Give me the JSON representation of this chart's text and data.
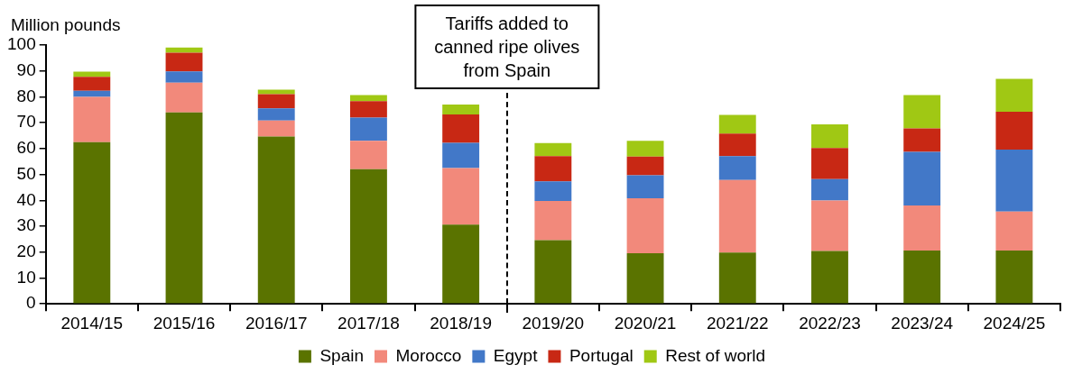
{
  "chart_data": {
    "type": "bar",
    "stacked": true,
    "ylabel": "Million pounds",
    "categories": [
      "2014/15",
      "2015/16",
      "2016/17",
      "2017/18",
      "2018/19",
      "2019/20",
      "2020/21",
      "2021/22",
      "2022/23",
      "2023/24",
      "2024/25"
    ],
    "series": [
      {
        "name": "Spain",
        "color": "#5a7300",
        "values": [
          62.5,
          74,
          64.7,
          52,
          30.6,
          24.6,
          19.6,
          19.8,
          20.4,
          20.6,
          20.6
        ]
      },
      {
        "name": "Morocco",
        "color": "#f2897b",
        "values": [
          17.5,
          11.5,
          6.1,
          11,
          21.9,
          15.2,
          21.2,
          28.1,
          19.5,
          17.4,
          15.1
        ]
      },
      {
        "name": "Egypt",
        "color": "#4278c8",
        "values": [
          2.3,
          4.3,
          4.7,
          9,
          9.7,
          7.5,
          8.9,
          9.2,
          8.3,
          20.7,
          23.9
        ]
      },
      {
        "name": "Portugal",
        "color": "#c82814",
        "values": [
          5.4,
          7.2,
          5.5,
          6.3,
          11,
          9.8,
          7.2,
          8.7,
          12,
          9.1,
          14.6
        ]
      },
      {
        "name": "Rest of world",
        "color": "#a0c814",
        "values": [
          2,
          2,
          1.8,
          2.4,
          3.8,
          5,
          6.1,
          7.2,
          9.2,
          12.9,
          12.7
        ]
      }
    ],
    "ylim": [
      0,
      100
    ],
    "yticks": [
      0,
      10,
      20,
      30,
      40,
      50,
      60,
      70,
      80,
      90,
      100
    ],
    "annotations": [
      "Tariffs added to\ncanned ripe olives\nfrom Spain"
    ],
    "grid": false,
    "legend": "bottom"
  }
}
